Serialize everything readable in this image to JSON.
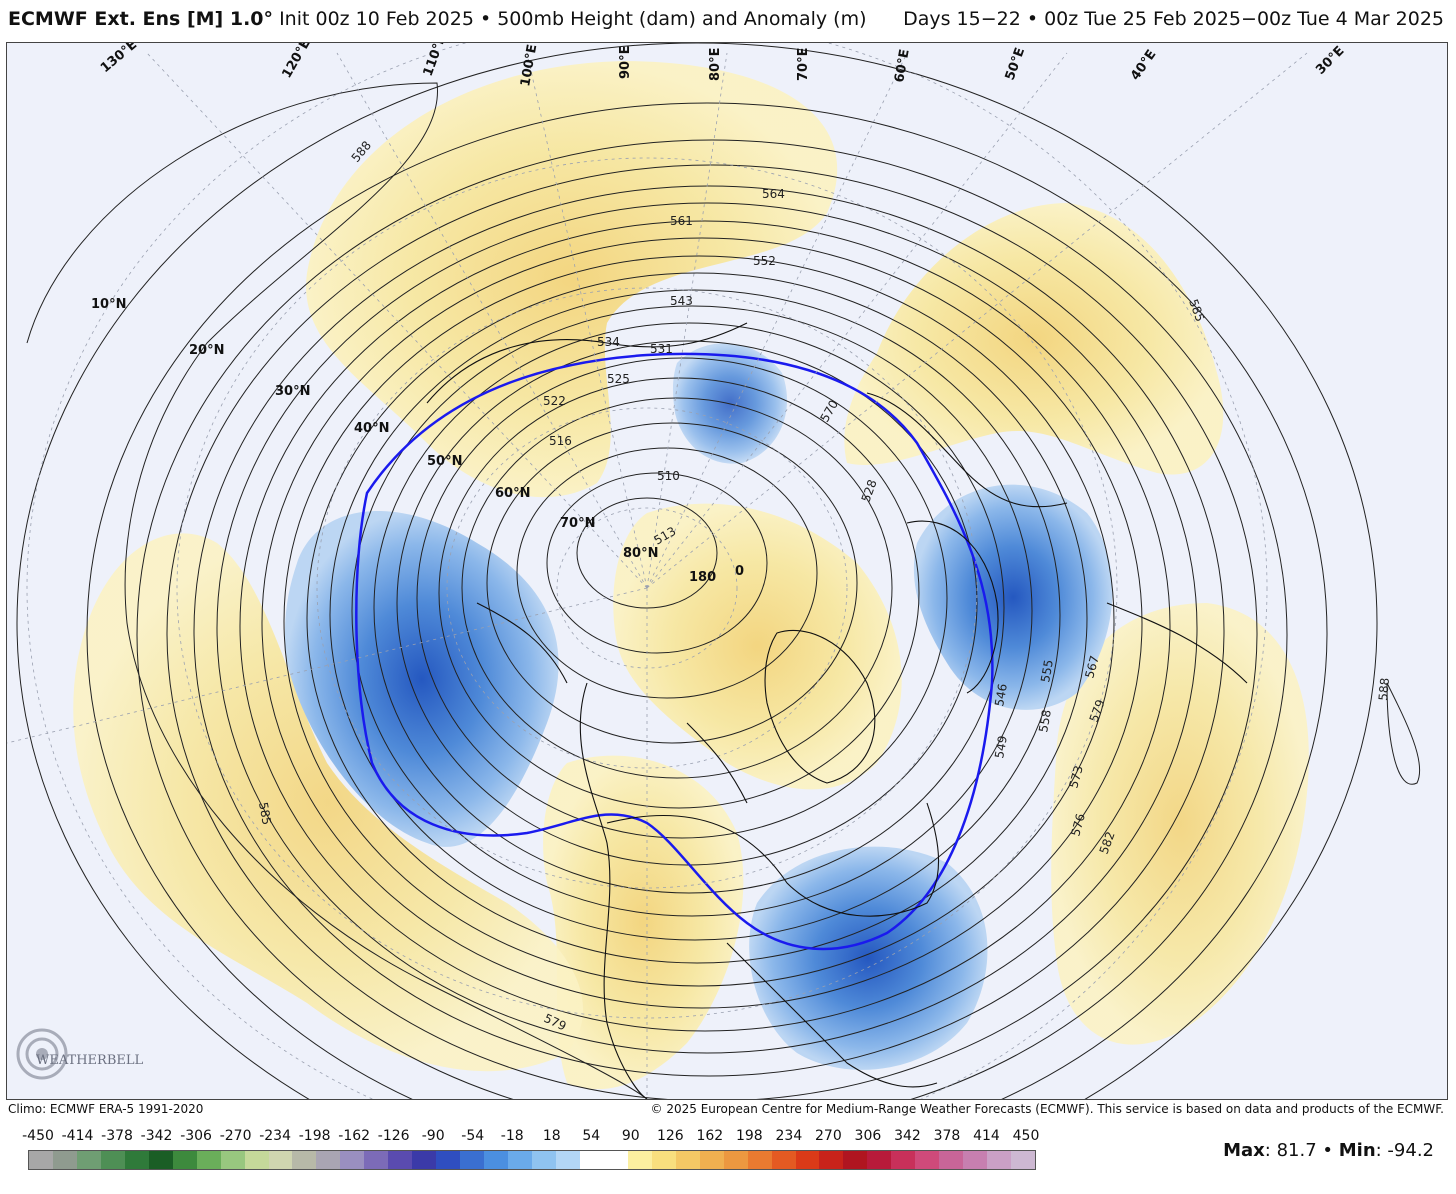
{
  "header": {
    "model": "ECMWF Ext. Ens [M] 1.0°",
    "init": "Init 00z 10 Feb 2025",
    "field": "• 500mb Height (dam) and Anomaly (m)",
    "valid": "Days 15−22 • 00z Tue 25 Feb 2025−00z Tue 4 Mar 2025"
  },
  "map": {
    "latitude_labels": [
      "10°N",
      "20°N",
      "30°N",
      "40°N",
      "50°N",
      "60°N",
      "70°N",
      "80°N"
    ],
    "longitude_labels": [
      "130°E",
      "120°E",
      "110°E",
      "100°E",
      "90°E",
      "80°E",
      "70°E",
      "60°E",
      "50°E",
      "40°E",
      "30°E",
      "180",
      "0"
    ],
    "contour_labels": [
      "588",
      "561",
      "552",
      "564",
      "543",
      "534",
      "531",
      "525",
      "522",
      "516",
      "510",
      "513",
      "570",
      "528",
      "546",
      "549",
      "555",
      "558",
      "567",
      "573",
      "576",
      "579",
      "582",
      "585",
      "585",
      "588",
      "579"
    ],
    "highlighted_contour": "546"
  },
  "footer": {
    "climo": "Climo: ECMWF ERA-5 1991-2020",
    "copyright": "© 2025 European Centre for Medium-Range Weather Forecasts (ECMWF). This service is based on data and products of the ECMWF."
  },
  "scale": {
    "ticks": [
      "-450",
      "-414",
      "-378",
      "-342",
      "-306",
      "-270",
      "-234",
      "-198",
      "-162",
      "-126",
      "-90",
      "-54",
      "-18",
      "18",
      "54",
      "90",
      "126",
      "162",
      "198",
      "234",
      "270",
      "306",
      "342",
      "378",
      "414",
      "450"
    ],
    "colors": [
      "#a7a7a7",
      "#8f9b8f",
      "#6f9e73",
      "#4e8f55",
      "#2f7a3a",
      "#1a5e25",
      "#3d8a3d",
      "#6aae5a",
      "#98c77f",
      "#c5d99a",
      "#cfd5b0",
      "#b7b9a8",
      "#a9a5b3",
      "#9a8fc0",
      "#7c6bb8",
      "#5a4bb0",
      "#3b3aa8",
      "#2f4ec0",
      "#3a6fd0",
      "#4b8fe0",
      "#6aaaea",
      "#8fc3f0",
      "#b3d6f5",
      "#ffffff",
      "#ffffff",
      "#fbefa0",
      "#f8df7e",
      "#f4c865",
      "#f0b050",
      "#ec9840",
      "#e97a30",
      "#e45a22",
      "#db3a18",
      "#c8231a",
      "#b01520",
      "#b81a3a",
      "#c8305a",
      "#cf4a7a",
      "#c86598",
      "#c77fb0",
      "#caa0c6",
      "#cdb8d2"
    ]
  },
  "stats": {
    "max_label": "Max",
    "max_value": ": 81.7 •",
    "min_label": "Min",
    "min_value": ": -94.2"
  },
  "logo": {
    "text": "WEATHERBELL",
    "icon": "swirl-logo-icon"
  },
  "colors": {
    "positive_anomaly": "#f7e99a",
    "negative_anomaly": "#3d7fd6",
    "highlight_contour": "#1a1aee",
    "background": "#eef1fa"
  }
}
